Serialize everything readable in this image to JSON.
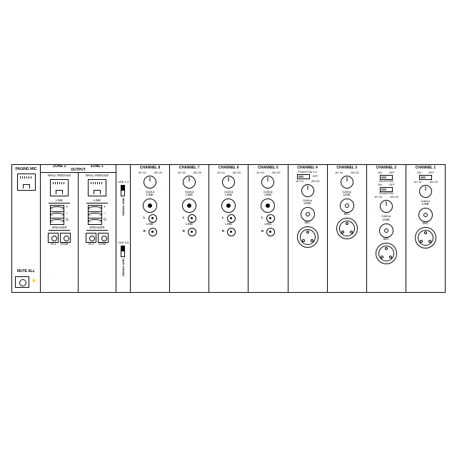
{
  "paging": {
    "label": "PAGING MIC",
    "mute": "MUTE ALL"
  },
  "output": {
    "title": "OUTPUT",
    "zones": [
      {
        "name": "ZONE 2",
        "wall": "WALL MODULE",
        "line": "LINE",
        "speaker": "SPEAKER",
        "hiz": "Hi-z",
        "com": "COM"
      },
      {
        "name": "ZONE 1",
        "wall": "WALL MODULE",
        "line": "LINE",
        "speaker": "SPEAKER",
        "hiz": "Hi-z",
        "com": "COM"
      }
    ]
  },
  "groups": {
    "a": {
      "range": "LINE 1-4",
      "sig": "SIGNAL\\nGND"
    },
    "b": {
      "range": "LINE 5-8",
      "sig": "SIGNAL\\nGND"
    }
  },
  "channels": [
    {
      "title": "CHANNEL 8",
      "type": "rca",
      "line": "LINE",
      "line2": "LINE",
      "gain_lo": "-6/+14",
      "gain_hi": "-30/-20",
      "gain": "GAIN"
    },
    {
      "title": "CHANNEL 7",
      "type": "rca",
      "line": "LINE",
      "line2": "LINE",
      "gain_lo": "-6/+14",
      "gain_hi": "-30/-20",
      "gain": "GAIN"
    },
    {
      "title": "CHANNEL 6",
      "type": "rca",
      "line": "LINE",
      "line2": "LINE",
      "gain_lo": "-6/+14",
      "gain_hi": "-30/-20",
      "gain": "GAIN"
    },
    {
      "title": "CHANNEL 5",
      "type": "rca",
      "line": "LINE",
      "line2": "LINE",
      "gain_lo": "-6/+14",
      "gain_hi": "-30/-20",
      "gain": "GAIN"
    },
    {
      "title": "CHANNEL 4",
      "type": "xlr",
      "line": "LINE",
      "mic": "MIC",
      "gain_lo": "-6/+14",
      "gain_hi": "-30/-20",
      "gain": "GAIN",
      "phantom": "PHANTOM 3-4",
      "on": "ON",
      "off": "OFF"
    },
    {
      "title": "CHANNEL 3",
      "type": "xlr",
      "line": "LINE",
      "mic": "MIC",
      "gain_lo": "-6/+14",
      "gain_hi": "-30/-20",
      "gain": "GAIN"
    },
    {
      "title": "CHANNEL 2",
      "type": "xlr",
      "line": "LINE",
      "mic": "MIC",
      "gain_lo": "-6/+14",
      "gain_hi": "-30/-20",
      "gain": "GAIN",
      "phantom": "PHANTOM",
      "on": "ON",
      "off": "OFF",
      "talk": "TALKOVER"
    },
    {
      "title": "CHANNEL 1",
      "type": "xlr",
      "line": "LINE",
      "mic": "MIC",
      "gain_lo": "-6/+14",
      "gain_hi": "-30/-20",
      "gain": "GAIN",
      "on": "ON",
      "off": "OFF"
    }
  ],
  "colors": {
    "line": "#000000",
    "bg": "#ffffff"
  }
}
